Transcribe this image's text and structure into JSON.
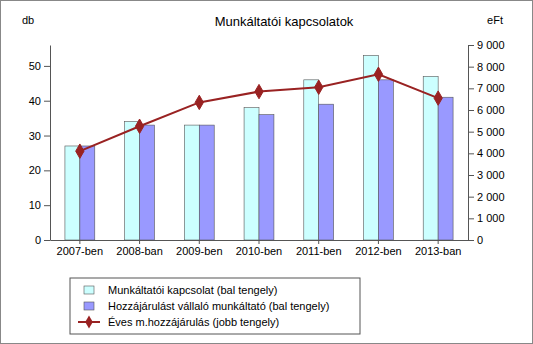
{
  "chart_data": {
    "type": "bar",
    "title": "Munkáltatói kapcsolatok",
    "y_label": "db",
    "y2_label": "eFt",
    "categories": [
      "2007-ben",
      "2008-ban",
      "2009-ben",
      "2010-ben",
      "2011-ben",
      "2012-ben",
      "2013-ban"
    ],
    "series": [
      {
        "name": "Munkáltatói kapcsolat (bal tengely)",
        "type": "bar",
        "color": "#ccffff",
        "values": [
          27,
          34,
          33,
          38,
          46,
          53,
          47
        ]
      },
      {
        "name": "Hozzájárulást vállaló munkáltató (bal tengely)",
        "type": "bar",
        "color": "#9999ff",
        "values": [
          27,
          33,
          33,
          36,
          39,
          46,
          41
        ]
      },
      {
        "name": "Éves m.hozzájárulás (jobb tengely)",
        "type": "line",
        "axis": "y2",
        "color": "#992222",
        "marker": "diamond",
        "values": [
          4100,
          5250,
          6350,
          6850,
          7050,
          7650,
          6550
        ]
      }
    ],
    "ylim": [
      0,
      56
    ],
    "yticks": [
      0,
      10,
      20,
      30,
      40,
      50
    ],
    "y2lim": [
      0,
      9000
    ],
    "y2ticks": [
      0,
      {
        "value": 1000,
        "label": "1 000"
      },
      {
        "value": 2000,
        "label": "2 000"
      },
      {
        "value": 3000,
        "label": "3 000"
      },
      {
        "value": 4000,
        "label": "4 000"
      },
      {
        "value": 5000,
        "label": "5 000"
      },
      {
        "value": 6000,
        "label": "6 000"
      },
      {
        "value": 7000,
        "label": "7 000"
      },
      {
        "value": 8000,
        "label": "8 000"
      },
      {
        "value": 9000,
        "label": "9 000"
      }
    ],
    "grid": false,
    "legend": "bottom"
  }
}
